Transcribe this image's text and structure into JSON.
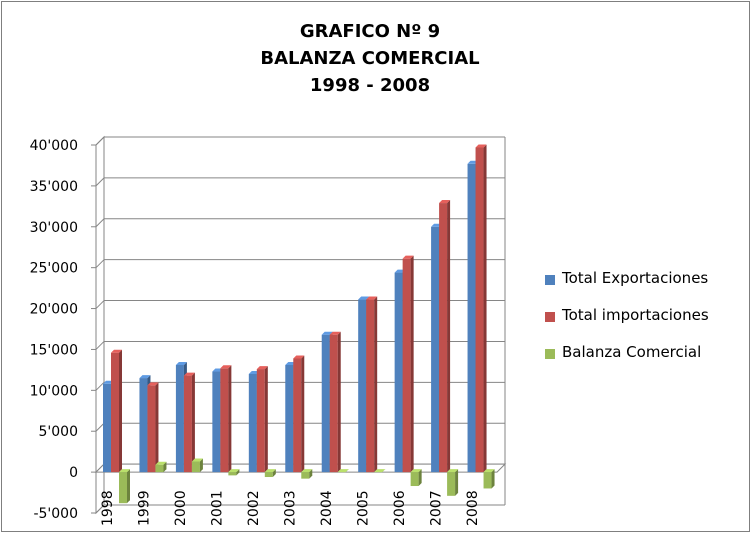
{
  "chart_data": {
    "type": "bar",
    "title": [
      "GRAFICO Nº 9",
      "BALANZA COMERCIAL",
      "1998 - 2008"
    ],
    "categories": [
      "1998",
      "1999",
      "2000",
      "2001",
      "2002",
      "2003",
      "2004",
      "2005",
      "2006",
      "2007",
      "2008"
    ],
    "series": [
      {
        "name": "Total Exportaciones",
        "color": "#4f81bd",
        "values": [
          10800,
          11500,
          13100,
          12300,
          12000,
          13100,
          16800,
          21100,
          24400,
          30000,
          37700
        ]
      },
      {
        "name": "Total importaciones",
        "color": "#c0504d",
        "values": [
          14600,
          10600,
          11800,
          12700,
          12600,
          13900,
          16800,
          21100,
          26100,
          32900,
          39700
        ]
      },
      {
        "name": "Balanza Comercial",
        "color": "#9bbb59",
        "values": [
          -3800,
          900,
          1300,
          -400,
          -600,
          -800,
          0,
          0,
          -1700,
          -2900,
          -2000
        ]
      }
    ],
    "yticks": [
      "-5'000",
      "0",
      "5'000",
      "10'000",
      "15'000",
      "20'000",
      "25'000",
      "30'000",
      "35'000",
      "40'000"
    ],
    "ytick_values": [
      -5000,
      0,
      5000,
      10000,
      15000,
      20000,
      25000,
      30000,
      35000,
      40000
    ],
    "ylim": [
      -5000,
      40000
    ],
    "grid": true,
    "style": "3d-clustered-column",
    "legend_position": "right",
    "gridline_color": "#868686"
  }
}
